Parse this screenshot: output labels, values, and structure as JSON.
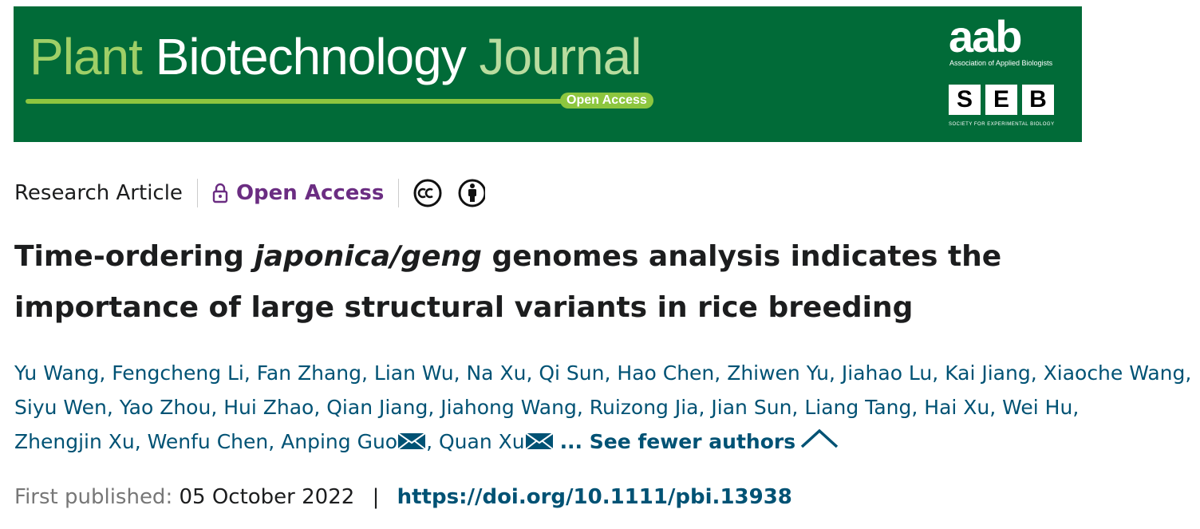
{
  "banner": {
    "journal": [
      "Plant",
      "Biotechnology",
      "Journal"
    ],
    "badge": "Open Access",
    "aab": "aab",
    "aab_name": "Association of Applied Biologists",
    "seb": [
      "S",
      "E",
      "B"
    ],
    "seb_name": "SOCIETY FOR EXPERIMENTAL BIOLOGY"
  },
  "meta": {
    "type": "Research Article",
    "access": "Open Access"
  },
  "title": {
    "before": "Time-ordering ",
    "italic": "japonica/geng",
    "after": " genomes analysis indicates the importance of large structural variants in rice breeding"
  },
  "authors": {
    "separator": ",",
    "list": [
      {
        "name": "Yu Wang"
      },
      {
        "name": "Fengcheng Li"
      },
      {
        "name": "Fan Zhang"
      },
      {
        "name": "Lian Wu"
      },
      {
        "name": "Na Xu"
      },
      {
        "name": "Qi Sun"
      },
      {
        "name": "Hao Chen"
      },
      {
        "name": "Zhiwen Yu"
      },
      {
        "name": "Jiahao Lu"
      },
      {
        "name": "Kai Jiang"
      },
      {
        "name": "Xiaoche Wang"
      },
      {
        "name": "Siyu Wen"
      },
      {
        "name": "Yao Zhou"
      },
      {
        "name": "Hui Zhao"
      },
      {
        "name": "Qian Jiang"
      },
      {
        "name": "Jiahong Wang"
      },
      {
        "name": "Ruizong Jia"
      },
      {
        "name": "Jian Sun"
      },
      {
        "name": "Liang Tang"
      },
      {
        "name": "Hai Xu"
      },
      {
        "name": "Wei Hu"
      },
      {
        "name": "Zhengjin Xu"
      },
      {
        "name": "Wenfu Chen"
      },
      {
        "name": "Anping Guo",
        "email": true
      },
      {
        "name": "Quan Xu",
        "email": true
      }
    ],
    "toggle": "... See fewer authors"
  },
  "publication": {
    "label": "First published:",
    "date": "05 October 2022",
    "divider": "|",
    "doi": "https://doi.org/10.1111/pbi.13938"
  }
}
